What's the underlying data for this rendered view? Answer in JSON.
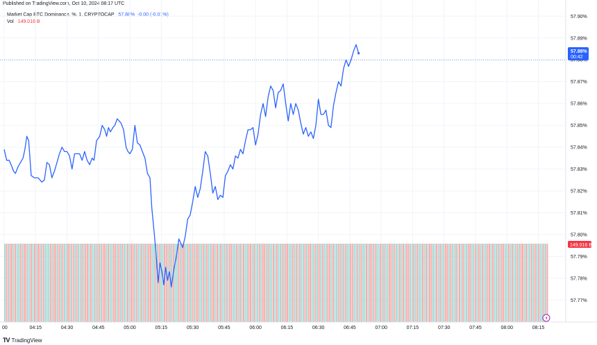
{
  "header": {
    "published": "Published on TradingView.com, Oct 10, 2024 08:17 UTC",
    "symbol": "Market Cap BTC Dominance, %, 1, CRYPTOCAP",
    "last_value": "57.88%",
    "change": "-0.00 (-0.01%)",
    "vol_label": "Vol",
    "vol_value": "149.016 B"
  },
  "price_tag": {
    "value": "57.88%",
    "countdown": "00:42"
  },
  "volume_tag": "149.016 B",
  "footer": {
    "brand": "TradingView",
    "logo": "tradingview-logo-icon"
  },
  "colors": {
    "line": "#2962ff",
    "volume_up": "#a5d9d6",
    "volume_down": "#f7a9a7",
    "volume_tag": "#f23645",
    "price_tag": "#2962ff"
  },
  "chart_data": {
    "type": "line",
    "x_ticks": [
      "00",
      "04:15",
      "04:30",
      "04:45",
      "05:00",
      "05:15",
      "05:30",
      "05:45",
      "06:00",
      "06:15",
      "06:30",
      "06:45",
      "07:00",
      "07:15",
      "07:30",
      "07:45",
      "08:00",
      "08:15"
    ],
    "y_ticks": [
      "57.77%",
      "57.78%",
      "57.79%",
      "57.80%",
      "57.81%",
      "57.82%",
      "57.83%",
      "57.84%",
      "57.85%",
      "57.86%",
      "57.87%",
      "57.88%",
      "57.89%",
      "57.90%"
    ],
    "ylim": [
      57.765,
      57.902
    ],
    "xlim_minutes": [
      4.0,
      8.33
    ],
    "series": [
      {
        "points": [
          [
            4.0,
            57.839
          ],
          [
            4.02,
            57.834
          ],
          [
            4.04,
            57.834
          ],
          [
            4.055,
            57.832
          ],
          [
            4.075,
            57.829
          ],
          [
            4.09,
            57.828
          ],
          [
            4.11,
            57.831
          ],
          [
            4.13,
            57.833
          ],
          [
            4.15,
            57.835
          ],
          [
            4.165,
            57.839
          ],
          [
            4.18,
            57.845
          ],
          [
            4.195,
            57.843
          ],
          [
            4.215,
            57.827
          ],
          [
            4.24,
            57.826
          ],
          [
            4.27,
            57.826
          ],
          [
            4.3,
            57.824
          ],
          [
            4.32,
            57.825
          ],
          [
            4.34,
            57.833
          ],
          [
            4.36,
            57.832
          ],
          [
            4.38,
            57.826
          ],
          [
            4.4,
            57.829
          ],
          [
            4.42,
            57.833
          ],
          [
            4.44,
            57.837
          ],
          [
            4.46,
            57.84
          ],
          [
            4.48,
            57.838
          ],
          [
            4.5,
            57.838
          ],
          [
            4.52,
            57.836
          ],
          [
            4.54,
            57.83
          ],
          [
            4.56,
            57.837
          ],
          [
            4.58,
            57.837
          ],
          [
            4.6,
            57.837
          ],
          [
            4.62,
            57.834
          ],
          [
            4.64,
            57.838
          ],
          [
            4.66,
            57.834
          ],
          [
            4.68,
            57.832
          ],
          [
            4.7,
            57.835
          ],
          [
            4.715,
            57.834
          ],
          [
            4.735,
            57.843
          ],
          [
            4.76,
            57.845
          ],
          [
            4.78,
            57.85
          ],
          [
            4.8,
            57.848
          ],
          [
            4.815,
            57.845
          ],
          [
            4.83,
            57.849
          ],
          [
            4.845,
            57.847
          ],
          [
            4.865,
            57.849
          ],
          [
            4.88,
            57.85
          ],
          [
            4.9,
            57.853
          ],
          [
            4.93,
            57.851
          ],
          [
            4.95,
            57.848
          ],
          [
            4.97,
            57.84
          ],
          [
            4.985,
            57.838
          ],
          [
            5.0,
            57.837
          ],
          [
            5.02,
            57.839
          ],
          [
            5.04,
            57.85
          ],
          [
            5.06,
            57.842
          ],
          [
            5.08,
            57.841
          ],
          [
            5.1,
            57.838
          ],
          [
            5.12,
            57.835
          ],
          [
            5.14,
            57.828
          ],
          [
            5.16,
            57.826
          ],
          [
            5.175,
            57.812
          ],
          [
            5.195,
            57.8
          ],
          [
            5.21,
            57.79
          ],
          [
            5.225,
            57.778
          ],
          [
            5.24,
            57.787
          ],
          [
            5.255,
            57.783
          ],
          [
            5.27,
            57.777
          ],
          [
            5.285,
            57.785
          ],
          [
            5.3,
            57.779
          ],
          [
            5.315,
            57.783
          ],
          [
            5.33,
            57.776
          ],
          [
            5.35,
            57.784
          ],
          [
            5.37,
            57.79
          ],
          [
            5.39,
            57.798
          ],
          [
            5.405,
            57.796
          ],
          [
            5.42,
            57.794
          ],
          [
            5.44,
            57.799
          ],
          [
            5.46,
            57.807
          ],
          [
            5.48,
            57.809
          ],
          [
            5.5,
            57.815
          ],
          [
            5.52,
            57.822
          ],
          [
            5.54,
            57.817
          ],
          [
            5.56,
            57.821
          ],
          [
            5.58,
            57.829
          ],
          [
            5.6,
            57.838
          ],
          [
            5.62,
            57.836
          ],
          [
            5.64,
            57.828
          ],
          [
            5.66,
            57.819
          ],
          [
            5.68,
            57.822
          ],
          [
            5.7,
            57.816
          ],
          [
            5.72,
            57.818
          ],
          [
            5.74,
            57.817
          ],
          [
            5.76,
            57.827
          ],
          [
            5.78,
            57.829
          ],
          [
            5.8,
            57.832
          ],
          [
            5.82,
            57.83
          ],
          [
            5.84,
            57.836
          ],
          [
            5.86,
            57.835
          ],
          [
            5.88,
            57.839
          ],
          [
            5.9,
            57.837
          ],
          [
            5.92,
            57.843
          ],
          [
            5.94,
            57.848
          ],
          [
            5.96,
            57.848
          ],
          [
            5.98,
            57.849
          ],
          [
            6.0,
            57.841
          ],
          [
            6.02,
            57.846
          ],
          [
            6.04,
            57.855
          ],
          [
            6.06,
            57.86
          ],
          [
            6.08,
            57.854
          ],
          [
            6.1,
            57.863
          ],
          [
            6.12,
            57.868
          ],
          [
            6.14,
            57.866
          ],
          [
            6.16,
            57.858
          ],
          [
            6.18,
            57.865
          ],
          [
            6.2,
            57.866
          ],
          [
            6.22,
            57.869
          ],
          [
            6.24,
            57.86
          ],
          [
            6.26,
            57.852
          ],
          [
            6.28,
            57.86
          ],
          [
            6.3,
            57.855
          ],
          [
            6.32,
            57.86
          ],
          [
            6.34,
            57.857
          ],
          [
            6.36,
            57.851
          ],
          [
            6.38,
            57.846
          ],
          [
            6.4,
            57.849
          ],
          [
            6.42,
            57.845
          ],
          [
            6.44,
            57.847
          ],
          [
            6.46,
            57.844
          ],
          [
            6.48,
            57.85
          ],
          [
            6.5,
            57.862
          ],
          [
            6.52,
            57.855
          ],
          [
            6.54,
            57.855
          ],
          [
            6.56,
            57.857
          ],
          [
            6.58,
            57.85
          ],
          [
            6.6,
            57.849
          ],
          [
            6.62,
            57.859
          ],
          [
            6.64,
            57.865
          ],
          [
            6.66,
            57.87
          ],
          [
            6.68,
            57.868
          ],
          [
            6.7,
            57.876
          ],
          [
            6.72,
            57.88
          ],
          [
            6.74,
            57.877
          ],
          [
            6.76,
            57.88
          ],
          [
            6.78,
            57.884
          ],
          [
            6.8,
            57.887
          ],
          [
            6.82,
            57.883
          ]
        ]
      }
    ],
    "volume": [
      1,
      0,
      1,
      0,
      0,
      1,
      0,
      1,
      1,
      0,
      1,
      0,
      0,
      1,
      1,
      0,
      1,
      0,
      1,
      0,
      0,
      1,
      0,
      1,
      1,
      1,
      0,
      1,
      0,
      0,
      1,
      0,
      1,
      0,
      1,
      1,
      0,
      0,
      1,
      0,
      1,
      0,
      1,
      1,
      0,
      1,
      0,
      0,
      1,
      0,
      1,
      1,
      0,
      1,
      0,
      1,
      0,
      0,
      1,
      0,
      1,
      1,
      0,
      0,
      1,
      0,
      1,
      0,
      1,
      1,
      0,
      1,
      0,
      0,
      1,
      0,
      1,
      1,
      0,
      1,
      0,
      1,
      0,
      0,
      1,
      1,
      0,
      1,
      0,
      1,
      1,
      0,
      0,
      1,
      0,
      1,
      0,
      1,
      1,
      0,
      1,
      0,
      0,
      1,
      1,
      0,
      1,
      0,
      1,
      0,
      0,
      1,
      1,
      0,
      1,
      0,
      1,
      1,
      0,
      0,
      1,
      0,
      1,
      0,
      1,
      1,
      0,
      1,
      0,
      0,
      1,
      1,
      0,
      1,
      0,
      1,
      0,
      1,
      1,
      0,
      0,
      1,
      0,
      1,
      1,
      0,
      1,
      0,
      0,
      1,
      0,
      1,
      1,
      0,
      1,
      0,
      1,
      1,
      0,
      1,
      0,
      0,
      1,
      1,
      0,
      1,
      0,
      1,
      0,
      1,
      1,
      0,
      1,
      0,
      0,
      1,
      1,
      0,
      1,
      0,
      1,
      0,
      1,
      1,
      0,
      0,
      1,
      0,
      1,
      1,
      0,
      1,
      0,
      1,
      0,
      1,
      1,
      0,
      0,
      1,
      1,
      0,
      1,
      0,
      1,
      1,
      0,
      1,
      0,
      0,
      1,
      0,
      1,
      1,
      0,
      1,
      0,
      1,
      1,
      0,
      0,
      1,
      0,
      1,
      1,
      0,
      1,
      0,
      1,
      0,
      0,
      1,
      1,
      0,
      1,
      0,
      1,
      1,
      0,
      1,
      0,
      1,
      0,
      0,
      1,
      1,
      0,
      1,
      0,
      1,
      1,
      0,
      0,
      1,
      0,
      1,
      1,
      0,
      1,
      0,
      1,
      0,
      1,
      1,
      0,
      0,
      1,
      1,
      0,
      1,
      0,
      1,
      0,
      1,
      1,
      0,
      0,
      1,
      0,
      1,
      1,
      0,
      1,
      0,
      0,
      1,
      1,
      0,
      1,
      0,
      1,
      1,
      0,
      1,
      0,
      0,
      1,
      0,
      1,
      1,
      0,
      1,
      0,
      1,
      0,
      1,
      1,
      0,
      1,
      0
    ]
  }
}
